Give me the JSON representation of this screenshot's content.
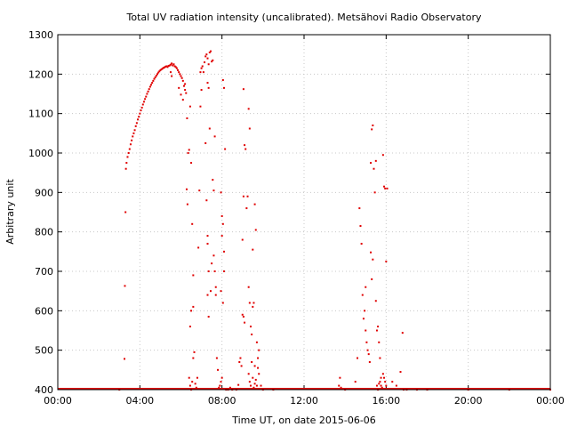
{
  "chart_data": {
    "type": "scatter",
    "title": "Total UV radiation intensity (uncalibrated). Metsähovi Radio Observatory",
    "xlabel": "Time UT, on date 2015-06-06",
    "ylabel": "Arbitrary unit",
    "xlim_hours": [
      0,
      24
    ],
    "ylim": [
      400,
      1300
    ],
    "x_ticks": [
      "00:00",
      "04:00",
      "08:00",
      "12:00",
      "16:00",
      "20:00",
      "00:00"
    ],
    "y_ticks": [
      "400",
      "500",
      "600",
      "700",
      "800",
      "900",
      "1000",
      "1100",
      "1200",
      "1300"
    ],
    "grid": true,
    "series_color": "#e00000",
    "series": [
      {
        "name": "",
        "points": [
          [
            3.0,
            400
          ],
          [
            3.25,
            478
          ],
          [
            3.27,
            663
          ],
          [
            3.3,
            850
          ],
          [
            3.32,
            960
          ],
          [
            3.35,
            975
          ],
          [
            3.4,
            990
          ],
          [
            3.45,
            1000
          ],
          [
            3.5,
            1010
          ],
          [
            3.55,
            1022
          ],
          [
            3.6,
            1032
          ],
          [
            3.65,
            1042
          ],
          [
            3.7,
            1050
          ],
          [
            3.75,
            1058
          ],
          [
            3.8,
            1068
          ],
          [
            3.85,
            1076
          ],
          [
            3.9,
            1085
          ],
          [
            3.95,
            1092
          ],
          [
            4.0,
            1100
          ],
          [
            4.05,
            1108
          ],
          [
            4.1,
            1115
          ],
          [
            4.15,
            1123
          ],
          [
            4.2,
            1130
          ],
          [
            4.25,
            1137
          ],
          [
            4.3,
            1143
          ],
          [
            4.35,
            1150
          ],
          [
            4.4,
            1156
          ],
          [
            4.45,
            1162
          ],
          [
            4.5,
            1168
          ],
          [
            4.55,
            1173
          ],
          [
            4.6,
            1178
          ],
          [
            4.65,
            1183
          ],
          [
            4.7,
            1188
          ],
          [
            4.75,
            1192
          ],
          [
            4.8,
            1196
          ],
          [
            4.85,
            1200
          ],
          [
            4.9,
            1204
          ],
          [
            4.95,
            1207
          ],
          [
            5.0,
            1210
          ],
          [
            5.05,
            1212
          ],
          [
            5.1,
            1214
          ],
          [
            5.15,
            1216
          ],
          [
            5.2,
            1217
          ],
          [
            5.25,
            1219
          ],
          [
            5.3,
            1220
          ],
          [
            5.35,
            1218
          ],
          [
            5.4,
            1221
          ],
          [
            5.45,
            1222
          ],
          [
            5.5,
            1224
          ],
          [
            5.55,
            1227
          ],
          [
            5.6,
            1222
          ],
          [
            5.65,
            1225
          ],
          [
            5.7,
            1220
          ],
          [
            5.75,
            1218
          ],
          [
            5.8,
            1215
          ],
          [
            5.85,
            1210
          ],
          [
            5.9,
            1205
          ],
          [
            5.95,
            1200
          ],
          [
            6.0,
            1195
          ],
          [
            6.05,
            1190
          ],
          [
            6.1,
            1183
          ],
          [
            6.15,
            1170
          ],
          [
            6.2,
            1160
          ],
          [
            6.25,
            1152
          ],
          [
            5.5,
            1205
          ],
          [
            5.55,
            1195
          ],
          [
            5.9,
            1165
          ],
          [
            6.0,
            1148
          ],
          [
            6.1,
            1135
          ],
          [
            6.2,
            1175
          ],
          [
            6.3,
            1088
          ],
          [
            6.35,
            1000
          ],
          [
            6.28,
            908
          ],
          [
            6.32,
            870
          ],
          [
            6.4,
            1008
          ],
          [
            6.45,
            1118
          ],
          [
            6.5,
            975
          ],
          [
            6.55,
            820
          ],
          [
            6.6,
            690
          ],
          [
            6.6,
            610
          ],
          [
            6.5,
            600
          ],
          [
            6.45,
            560
          ],
          [
            6.4,
            430
          ],
          [
            6.45,
            410
          ],
          [
            6.5,
            400
          ],
          [
            6.55,
            420
          ],
          [
            6.6,
            480
          ],
          [
            6.65,
            495
          ],
          [
            6.7,
            415
          ],
          [
            6.75,
            405
          ],
          [
            6.8,
            430
          ],
          [
            6.85,
            760
          ],
          [
            6.9,
            905
          ],
          [
            6.95,
            1118
          ],
          [
            7.0,
            1160
          ],
          [
            6.95,
            1205
          ],
          [
            7.0,
            1215
          ],
          [
            7.05,
            1220
          ],
          [
            7.1,
            1205
          ],
          [
            7.15,
            1230
          ],
          [
            7.2,
            1245
          ],
          [
            7.25,
            1250
          ],
          [
            7.3,
            1240
          ],
          [
            7.35,
            1225
          ],
          [
            7.4,
            1255
          ],
          [
            7.45,
            1258
          ],
          [
            7.5,
            1232
          ],
          [
            7.55,
            1235
          ],
          [
            7.3,
            1178
          ],
          [
            7.35,
            1165
          ],
          [
            7.4,
            1062
          ],
          [
            7.2,
            1025
          ],
          [
            7.25,
            880
          ],
          [
            7.3,
            790
          ],
          [
            7.35,
            700
          ],
          [
            7.3,
            640
          ],
          [
            7.35,
            585
          ],
          [
            7.3,
            770
          ],
          [
            7.45,
            650
          ],
          [
            7.5,
            720
          ],
          [
            7.55,
            932
          ],
          [
            7.6,
            905
          ],
          [
            7.65,
            1042
          ],
          [
            7.6,
            740
          ],
          [
            7.65,
            700
          ],
          [
            7.7,
            660
          ],
          [
            7.7,
            640
          ],
          [
            7.75,
            480
          ],
          [
            7.8,
            450
          ],
          [
            7.85,
            405
          ],
          [
            7.9,
            410
          ],
          [
            7.95,
            420
          ],
          [
            8.0,
            430
          ],
          [
            8.05,
            1185
          ],
          [
            8.1,
            1165
          ],
          [
            8.15,
            1010
          ],
          [
            7.95,
            900
          ],
          [
            8.0,
            840
          ],
          [
            8.05,
            820
          ],
          [
            8.1,
            750
          ],
          [
            8.0,
            790
          ],
          [
            8.1,
            700
          ],
          [
            7.95,
            650
          ],
          [
            8.05,
            620
          ],
          [
            8.2,
            400
          ],
          [
            8.3,
            400
          ],
          [
            8.4,
            405
          ],
          [
            8.5,
            400
          ],
          [
            8.6,
            402
          ],
          [
            8.7,
            400
          ],
          [
            8.8,
            412
          ],
          [
            8.85,
            470
          ],
          [
            8.9,
            480
          ],
          [
            8.95,
            460
          ],
          [
            9.0,
            590
          ],
          [
            9.05,
            585
          ],
          [
            9.1,
            570
          ],
          [
            9.0,
            780
          ],
          [
            9.05,
            890
          ],
          [
            9.1,
            1020
          ],
          [
            9.15,
            1010
          ],
          [
            9.05,
            1162
          ],
          [
            9.2,
            860
          ],
          [
            9.25,
            890
          ],
          [
            9.3,
            1112
          ],
          [
            9.35,
            1062
          ],
          [
            9.3,
            660
          ],
          [
            9.35,
            620
          ],
          [
            9.4,
            560
          ],
          [
            9.45,
            540
          ],
          [
            9.5,
            610
          ],
          [
            9.55,
            620
          ],
          [
            9.6,
            870
          ],
          [
            9.65,
            805
          ],
          [
            9.5,
            755
          ],
          [
            9.6,
            460
          ],
          [
            9.7,
            520
          ],
          [
            9.75,
            480
          ],
          [
            9.8,
            500
          ],
          [
            9.3,
            440
          ],
          [
            9.35,
            420
          ],
          [
            9.4,
            410
          ],
          [
            9.45,
            470
          ],
          [
            9.5,
            430
          ],
          [
            9.55,
            405
          ],
          [
            9.6,
            415
          ],
          [
            9.65,
            425
          ],
          [
            9.7,
            410
          ],
          [
            9.75,
            455
          ],
          [
            9.8,
            440
          ],
          [
            9.85,
            402
          ],
          [
            9.9,
            410
          ],
          [
            10.0,
            400
          ],
          [
            10.2,
            402
          ],
          [
            10.5,
            400
          ],
          [
            13.7,
            410
          ],
          [
            13.75,
            430
          ],
          [
            13.8,
            405
          ],
          [
            14.0,
            400
          ],
          [
            14.3,
            402
          ],
          [
            14.5,
            420
          ],
          [
            14.6,
            480
          ],
          [
            14.7,
            860
          ],
          [
            14.75,
            815
          ],
          [
            14.8,
            770
          ],
          [
            14.85,
            640
          ],
          [
            14.9,
            580
          ],
          [
            14.95,
            600
          ],
          [
            15.0,
            660
          ],
          [
            15.0,
            550
          ],
          [
            15.05,
            520
          ],
          [
            15.1,
            500
          ],
          [
            15.15,
            490
          ],
          [
            15.2,
            470
          ],
          [
            15.25,
            748
          ],
          [
            15.3,
            680
          ],
          [
            15.35,
            730
          ],
          [
            15.25,
            975
          ],
          [
            15.3,
            1060
          ],
          [
            15.35,
            1070
          ],
          [
            15.4,
            960
          ],
          [
            15.45,
            900
          ],
          [
            15.5,
            980
          ],
          [
            15.5,
            625
          ],
          [
            15.55,
            550
          ],
          [
            15.6,
            560
          ],
          [
            15.65,
            520
          ],
          [
            15.7,
            480
          ],
          [
            15.75,
            430
          ],
          [
            15.8,
            405
          ],
          [
            15.85,
            995
          ],
          [
            15.9,
            915
          ],
          [
            15.95,
            910
          ],
          [
            16.05,
            910
          ],
          [
            16.0,
            725
          ],
          [
            15.55,
            410
          ],
          [
            15.6,
            400
          ],
          [
            15.65,
            415
          ],
          [
            15.7,
            420
          ],
          [
            15.75,
            410
          ],
          [
            15.8,
            402
          ],
          [
            15.85,
            440
          ],
          [
            15.9,
            430
          ],
          [
            15.95,
            420
          ],
          [
            16.0,
            410
          ],
          [
            16.1,
            402
          ],
          [
            16.3,
            420
          ],
          [
            16.5,
            410
          ],
          [
            16.7,
            445
          ],
          [
            16.8,
            544
          ],
          [
            16.85,
            400
          ],
          [
            17.0,
            400
          ],
          [
            17.5,
            400
          ],
          [
            18.0,
            400
          ],
          [
            20.0,
            400
          ],
          [
            22.0,
            400
          ],
          [
            24.0,
            400
          ]
        ]
      }
    ]
  }
}
